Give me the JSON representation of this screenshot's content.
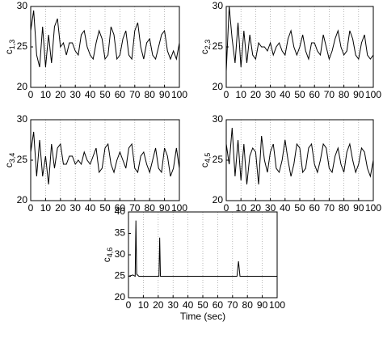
{
  "chart_data": [
    {
      "type": "line",
      "ylabel": "c",
      "ylabel_subscript": "1,3",
      "xlim": [
        0,
        100
      ],
      "xticks": [
        0,
        10,
        20,
        30,
        40,
        50,
        60,
        70,
        80,
        90,
        100
      ],
      "ylim": [
        20,
        30
      ],
      "yticks": [
        20,
        25,
        30
      ],
      "grid": "x",
      "x": [
        0,
        2,
        4,
        6,
        8,
        10,
        12,
        14,
        16,
        18,
        20,
        22,
        24,
        26,
        28,
        30,
        32,
        34,
        36,
        38,
        40,
        42,
        44,
        46,
        48,
        50,
        52,
        54,
        56,
        58,
        60,
        62,
        64,
        66,
        68,
        70,
        72,
        74,
        76,
        78,
        80,
        82,
        84,
        86,
        88,
        90,
        92,
        94,
        96,
        98,
        100
      ],
      "series": [
        {
          "color": "#000000",
          "values": [
            27,
            29.5,
            24,
            22.5,
            27.5,
            22.5,
            26.5,
            23,
            27.5,
            28.5,
            25,
            25.5,
            24,
            25.5,
            25.5,
            24.5,
            24,
            26.5,
            27,
            25,
            24,
            23.5,
            25.5,
            27,
            26,
            23.5,
            24,
            27.5,
            26.5,
            23.5,
            24,
            26,
            27,
            24,
            23.5,
            27,
            28,
            25,
            23.5,
            25.5,
            26,
            24,
            23.5,
            25,
            26.5,
            27,
            24.5,
            23.5,
            24.5,
            23.5,
            25.5
          ]
        }
      ]
    },
    {
      "type": "line",
      "ylabel": "c",
      "ylabel_subscript": "2,3",
      "xlim": [
        0,
        100
      ],
      "xticks": [
        0,
        10,
        20,
        30,
        40,
        50,
        60,
        70,
        80,
        90,
        100
      ],
      "ylim": [
        20,
        30
      ],
      "yticks": [
        20,
        25,
        30
      ],
      "grid": "x",
      "x": [
        0,
        2,
        4,
        6,
        8,
        10,
        12,
        14,
        16,
        18,
        20,
        22,
        24,
        26,
        28,
        30,
        32,
        34,
        36,
        38,
        40,
        42,
        44,
        46,
        48,
        50,
        52,
        54,
        56,
        58,
        60,
        62,
        64,
        66,
        68,
        70,
        72,
        74,
        76,
        78,
        80,
        82,
        84,
        86,
        88,
        90,
        92,
        94,
        96,
        98,
        100
      ],
      "series": [
        {
          "color": "#000000",
          "values": [
            22,
            30,
            26,
            23,
            28,
            22.5,
            27,
            23,
            26.5,
            24,
            23.5,
            25.5,
            25,
            25,
            24.5,
            25.5,
            24,
            25,
            25.5,
            24.5,
            24,
            26,
            27,
            25,
            24,
            25,
            26.5,
            24.5,
            23.5,
            25.5,
            25.5,
            24.5,
            24,
            26.5,
            25,
            23.5,
            24.5,
            26,
            27,
            25,
            24,
            24.5,
            27,
            26,
            24,
            23.5,
            25.5,
            26.5,
            24,
            23.5,
            24
          ]
        }
      ]
    },
    {
      "type": "line",
      "ylabel": "c",
      "ylabel_subscript": "3,4",
      "xlim": [
        0,
        100
      ],
      "xticks": [
        0,
        10,
        20,
        30,
        40,
        50,
        60,
        70,
        80,
        90,
        100
      ],
      "ylim": [
        20,
        30
      ],
      "yticks": [
        20,
        25,
        30
      ],
      "grid": "x",
      "x": [
        0,
        2,
        4,
        6,
        8,
        10,
        12,
        14,
        16,
        18,
        20,
        22,
        24,
        26,
        28,
        30,
        32,
        34,
        36,
        38,
        40,
        42,
        44,
        46,
        48,
        50,
        52,
        54,
        56,
        58,
        60,
        62,
        64,
        66,
        68,
        70,
        72,
        74,
        76,
        78,
        80,
        82,
        84,
        86,
        88,
        90,
        92,
        94,
        96,
        98,
        100
      ],
      "series": [
        {
          "color": "#000000",
          "values": [
            26,
            28.5,
            23,
            27.5,
            23,
            25.5,
            22,
            27,
            24,
            26.5,
            27,
            24.5,
            24.5,
            25.5,
            25.5,
            24.5,
            25,
            24.5,
            26,
            25,
            24.5,
            25.5,
            26.5,
            23.5,
            24,
            26.5,
            27,
            24.5,
            23.5,
            25,
            26,
            25,
            24,
            26.5,
            27,
            24,
            23.5,
            25.5,
            26,
            24.5,
            23.5,
            25,
            26.5,
            24,
            23.5,
            26.5,
            25.5,
            23,
            24,
            26.5,
            24
          ]
        }
      ]
    },
    {
      "type": "line",
      "ylabel": "c",
      "ylabel_subscript": "4,5",
      "xlim": [
        0,
        100
      ],
      "xticks": [
        0,
        10,
        20,
        30,
        40,
        50,
        60,
        70,
        80,
        90,
        100
      ],
      "ylim": [
        20,
        30
      ],
      "yticks": [
        20,
        25,
        30
      ],
      "grid": "x",
      "x": [
        0,
        2,
        4,
        6,
        8,
        10,
        12,
        14,
        16,
        18,
        20,
        22,
        24,
        26,
        28,
        30,
        32,
        34,
        36,
        38,
        40,
        42,
        44,
        46,
        48,
        50,
        52,
        54,
        56,
        58,
        60,
        62,
        64,
        66,
        68,
        70,
        72,
        74,
        76,
        78,
        80,
        82,
        84,
        86,
        88,
        90,
        92,
        94,
        96,
        98,
        100
      ],
      "series": [
        {
          "color": "#000000",
          "values": [
            27,
            24.5,
            29,
            23,
            27.5,
            22.5,
            27,
            22,
            25.5,
            26.5,
            26,
            22,
            28,
            25,
            23.5,
            26,
            27,
            24,
            23.5,
            25,
            27.5,
            25,
            23,
            24.5,
            27,
            26.5,
            23.5,
            24,
            26.5,
            27,
            24.5,
            23.5,
            25,
            27,
            26.5,
            24,
            23.5,
            25.5,
            26.5,
            24.5,
            23.5,
            26,
            27,
            25,
            23.5,
            24.5,
            26.5,
            26,
            24,
            23,
            25
          ]
        }
      ]
    },
    {
      "type": "line",
      "ylabel": "c",
      "ylabel_subscript": "4,6",
      "xlabel": "Time (sec)",
      "xlim": [
        0,
        100
      ],
      "xticks": [
        0,
        10,
        20,
        30,
        40,
        50,
        60,
        70,
        80,
        90,
        100
      ],
      "ylim": [
        20,
        40
      ],
      "yticks": [
        20,
        25,
        30,
        35,
        40
      ],
      "grid": "x",
      "x": [
        0,
        3,
        4.5,
        5,
        5.5,
        7,
        10,
        15,
        19,
        20.5,
        21,
        21.5,
        23,
        30,
        40,
        50,
        60,
        70,
        73,
        74,
        75,
        77,
        80,
        90,
        100
      ],
      "series": [
        {
          "color": "#000000",
          "values": [
            25,
            25.3,
            25,
            38,
            25.5,
            25,
            25,
            25,
            25,
            25,
            34,
            25,
            25,
            25,
            25,
            25,
            25,
            25,
            25,
            28.5,
            25,
            25,
            25,
            25,
            25
          ]
        }
      ]
    }
  ]
}
